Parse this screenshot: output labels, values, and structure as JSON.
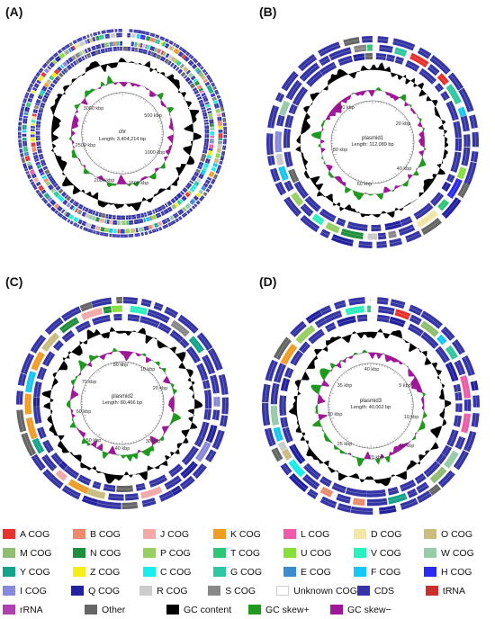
{
  "colors": {
    "COG_A": "#e8302c",
    "COG_B": "#f08a6c",
    "COG_J": "#f4a8a8",
    "COG_K": "#f39c22",
    "COG_L": "#f05aa8",
    "COG_D": "#f3e6a8",
    "COG_O": "#cbbd80",
    "COG_M": "#8fbf6e",
    "COG_N": "#1f8f3a",
    "COG_P": "#96d060",
    "COG_T": "#2ec77a",
    "COG_U": "#86e03a",
    "COG_V": "#2af0c0",
    "COG_W": "#96cca8",
    "COG_Y": "#12a58c",
    "COG_Z": "#f6ee14",
    "COG_C": "#14eeee",
    "COG_G": "#2ec8a0",
    "COG_E": "#3a8ccc",
    "COG_F": "#14c8f6",
    "COG_H": "#2a2af0",
    "COG_I": "#8888dc",
    "COG_Q": "#2222a0",
    "COG_R": "#cccccc",
    "COG_S": "#888888",
    "COG_unknown": "#ffffff",
    "CDS": "#3535a8",
    "tRNA": "#c8302c",
    "rRNA": "#b040b0",
    "Other": "#666666",
    "GC_content": "#000000",
    "GC_skew_plus": "#1f9a1f",
    "GC_skew_minus": "#a0189a"
  },
  "panels": [
    {
      "label": "(A)",
      "name": "chr",
      "length": "Length: 3,404,214 bp",
      "ticks": [
        "3000 kbp",
        "500 kbp",
        "2500 kbp",
        "1000 kbp",
        "2000 kbp",
        "1500 kbp"
      ]
    },
    {
      "label": "(B)",
      "name": "plasmid1",
      "length": "Length: 112,089 bp",
      "ticks": [
        "100 kbp",
        "20 kbp",
        "80 kbp",
        "40 kbp",
        "60 kbp"
      ]
    },
    {
      "label": "(C)",
      "name": "plasmid2",
      "length": "Length: 80,466 bp",
      "ticks": [
        "80 kbp",
        "10 kbp",
        "70 kbp",
        "20 kbp",
        "60 kbp",
        "50 kbp",
        "30 kbp",
        "40 kbp"
      ]
    },
    {
      "label": "(D)",
      "name": "plasmid3",
      "length": "Length: 40,002 bp",
      "ticks": [
        "40 kbp",
        "35 kbp",
        "5 kbp",
        "30 kbp",
        "10 kbp",
        "25 kbp",
        "15 kbp",
        "20 kbp"
      ]
    }
  ],
  "legend": [
    {
      "key": "COG_A",
      "label": "A COG"
    },
    {
      "key": "COG_B",
      "label": "B COG"
    },
    {
      "key": "COG_J",
      "label": "J COG"
    },
    {
      "key": "COG_K",
      "label": "K COG"
    },
    {
      "key": "COG_L",
      "label": "L COG"
    },
    {
      "key": "COG_D",
      "label": "D COG"
    },
    {
      "key": "COG_O",
      "label": "O COG"
    },
    {
      "key": "COG_M",
      "label": "M COG"
    },
    {
      "key": "COG_N",
      "label": "N COG"
    },
    {
      "key": "COG_P",
      "label": "P COG"
    },
    {
      "key": "COG_T",
      "label": "T COG"
    },
    {
      "key": "COG_U",
      "label": "U COG"
    },
    {
      "key": "COG_V",
      "label": "V COG"
    },
    {
      "key": "COG_W",
      "label": "W COG"
    },
    {
      "key": "COG_Y",
      "label": "Y COG"
    },
    {
      "key": "COG_Z",
      "label": "Z COG"
    },
    {
      "key": "COG_C",
      "label": "C COG"
    },
    {
      "key": "COG_G",
      "label": "G COG"
    },
    {
      "key": "COG_E",
      "label": "E COG"
    },
    {
      "key": "COG_F",
      "label": "F COG"
    },
    {
      "key": "COG_H",
      "label": "H COG"
    },
    {
      "key": "COG_I",
      "label": "I COG"
    },
    {
      "key": "COG_Q",
      "label": "Q COG"
    },
    {
      "key": "COG_R",
      "label": "R COG"
    },
    {
      "key": "COG_S",
      "label": "S COG"
    },
    {
      "key": "COG_unknown",
      "label": "Unknown COG"
    },
    {
      "key": "CDS",
      "label": "CDS"
    },
    {
      "key": "tRNA",
      "label": "tRNA"
    },
    {
      "key": "rRNA",
      "label": "rRNA"
    },
    {
      "key": "Other",
      "label": "Other"
    },
    {
      "key": "GC_content",
      "label": "GC content"
    },
    {
      "key": "GC_skew_plus",
      "label": "GC skew+"
    },
    {
      "key": "GC_skew_minus",
      "label": "GC skew−"
    }
  ]
}
